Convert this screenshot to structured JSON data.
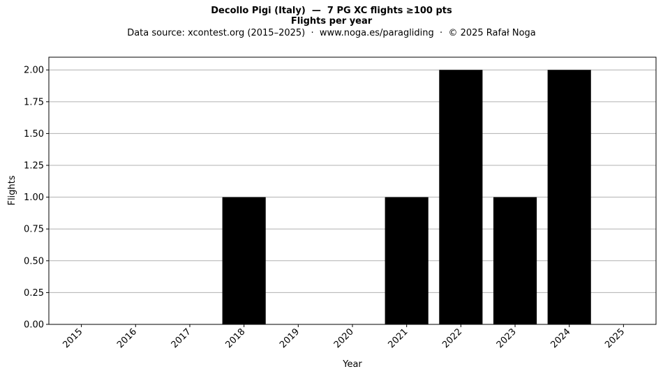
{
  "chart_data": {
    "type": "bar",
    "title": "Decollo Pigi (Italy)  —  7 PG XC flights ≥100 pts",
    "subtitle": "Flights per year",
    "source_note": "Data source: xcontest.org (2015–2025)  ·  www.noga.es/paragliding  ·  © 2025 Rafał Noga",
    "xlabel": "Year",
    "ylabel": "Flights",
    "categories": [
      "2015",
      "2016",
      "2017",
      "2018",
      "2019",
      "2020",
      "2021",
      "2022",
      "2023",
      "2024",
      "2025"
    ],
    "values": [
      0,
      0,
      0,
      1,
      0,
      0,
      1,
      2,
      1,
      2,
      0
    ],
    "ylim": [
      0,
      2.1
    ],
    "yticks": [
      "0.00",
      "0.25",
      "0.50",
      "0.75",
      "1.00",
      "1.25",
      "1.50",
      "1.75",
      "2.00"
    ],
    "grid": "y",
    "bar_color": "#000000",
    "grid_color": "#b0b0b0"
  }
}
